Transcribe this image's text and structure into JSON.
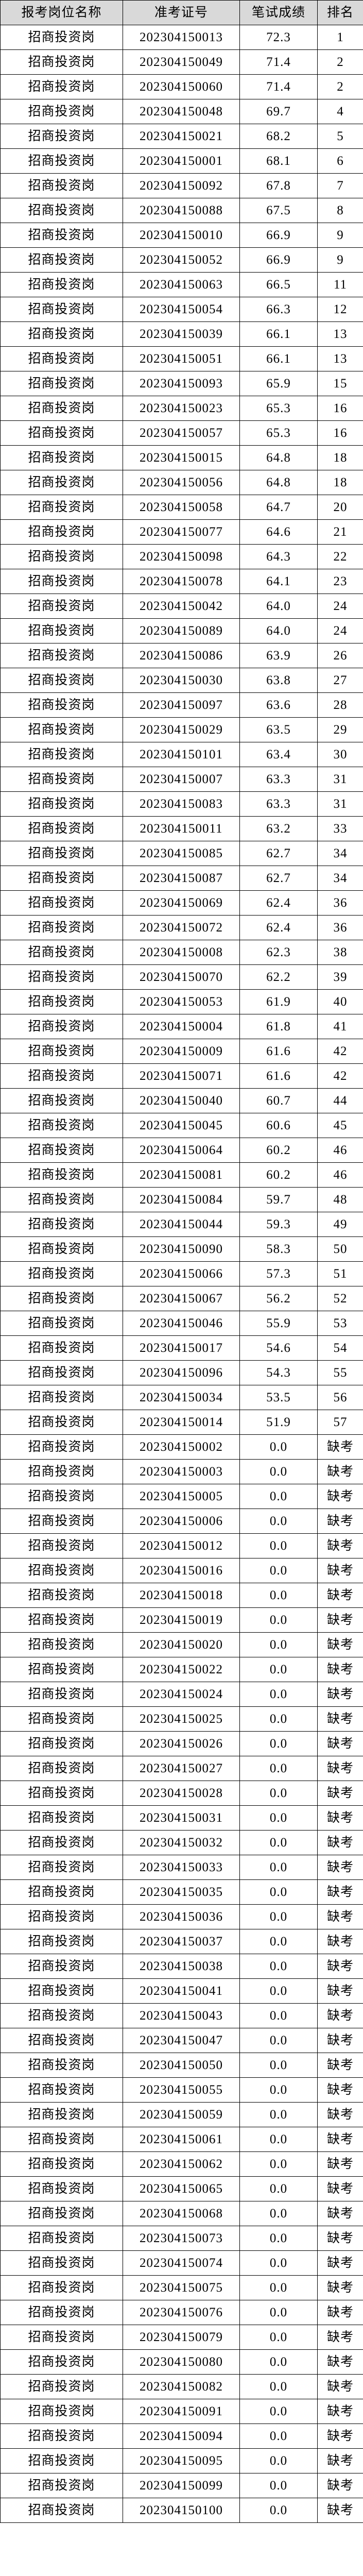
{
  "table": {
    "headers": [
      "报考岗位名称",
      "准考证号",
      "笔试成绩",
      "排名"
    ],
    "header_bg": "#d9d9d9",
    "rows": [
      [
        "招商投资岗",
        "202304150013",
        "72.3",
        "1"
      ],
      [
        "招商投资岗",
        "202304150049",
        "71.4",
        "2"
      ],
      [
        "招商投资岗",
        "202304150060",
        "71.4",
        "2"
      ],
      [
        "招商投资岗",
        "202304150048",
        "69.7",
        "4"
      ],
      [
        "招商投资岗",
        "202304150021",
        "68.2",
        "5"
      ],
      [
        "招商投资岗",
        "202304150001",
        "68.1",
        "6"
      ],
      [
        "招商投资岗",
        "202304150092",
        "67.8",
        "7"
      ],
      [
        "招商投资岗",
        "202304150088",
        "67.5",
        "8"
      ],
      [
        "招商投资岗",
        "202304150010",
        "66.9",
        "9"
      ],
      [
        "招商投资岗",
        "202304150052",
        "66.9",
        "9"
      ],
      [
        "招商投资岗",
        "202304150063",
        "66.5",
        "11"
      ],
      [
        "招商投资岗",
        "202304150054",
        "66.3",
        "12"
      ],
      [
        "招商投资岗",
        "202304150039",
        "66.1",
        "13"
      ],
      [
        "招商投资岗",
        "202304150051",
        "66.1",
        "13"
      ],
      [
        "招商投资岗",
        "202304150093",
        "65.9",
        "15"
      ],
      [
        "招商投资岗",
        "202304150023",
        "65.3",
        "16"
      ],
      [
        "招商投资岗",
        "202304150057",
        "65.3",
        "16"
      ],
      [
        "招商投资岗",
        "202304150015",
        "64.8",
        "18"
      ],
      [
        "招商投资岗",
        "202304150056",
        "64.8",
        "18"
      ],
      [
        "招商投资岗",
        "202304150058",
        "64.7",
        "20"
      ],
      [
        "招商投资岗",
        "202304150077",
        "64.6",
        "21"
      ],
      [
        "招商投资岗",
        "202304150098",
        "64.3",
        "22"
      ],
      [
        "招商投资岗",
        "202304150078",
        "64.1",
        "23"
      ],
      [
        "招商投资岗",
        "202304150042",
        "64.0",
        "24"
      ],
      [
        "招商投资岗",
        "202304150089",
        "64.0",
        "24"
      ],
      [
        "招商投资岗",
        "202304150086",
        "63.9",
        "26"
      ],
      [
        "招商投资岗",
        "202304150030",
        "63.8",
        "27"
      ],
      [
        "招商投资岗",
        "202304150097",
        "63.6",
        "28"
      ],
      [
        "招商投资岗",
        "202304150029",
        "63.5",
        "29"
      ],
      [
        "招商投资岗",
        "202304150101",
        "63.4",
        "30"
      ],
      [
        "招商投资岗",
        "202304150007",
        "63.3",
        "31"
      ],
      [
        "招商投资岗",
        "202304150083",
        "63.3",
        "31"
      ],
      [
        "招商投资岗",
        "202304150011",
        "63.2",
        "33"
      ],
      [
        "招商投资岗",
        "202304150085",
        "62.7",
        "34"
      ],
      [
        "招商投资岗",
        "202304150087",
        "62.7",
        "34"
      ],
      [
        "招商投资岗",
        "202304150069",
        "62.4",
        "36"
      ],
      [
        "招商投资岗",
        "202304150072",
        "62.4",
        "36"
      ],
      [
        "招商投资岗",
        "202304150008",
        "62.3",
        "38"
      ],
      [
        "招商投资岗",
        "202304150070",
        "62.2",
        "39"
      ],
      [
        "招商投资岗",
        "202304150053",
        "61.9",
        "40"
      ],
      [
        "招商投资岗",
        "202304150004",
        "61.8",
        "41"
      ],
      [
        "招商投资岗",
        "202304150009",
        "61.6",
        "42"
      ],
      [
        "招商投资岗",
        "202304150071",
        "61.6",
        "42"
      ],
      [
        "招商投资岗",
        "202304150040",
        "60.7",
        "44"
      ],
      [
        "招商投资岗",
        "202304150045",
        "60.6",
        "45"
      ],
      [
        "招商投资岗",
        "202304150064",
        "60.2",
        "46"
      ],
      [
        "招商投资岗",
        "202304150081",
        "60.2",
        "46"
      ],
      [
        "招商投资岗",
        "202304150084",
        "59.7",
        "48"
      ],
      [
        "招商投资岗",
        "202304150044",
        "59.3",
        "49"
      ],
      [
        "招商投资岗",
        "202304150090",
        "58.3",
        "50"
      ],
      [
        "招商投资岗",
        "202304150066",
        "57.3",
        "51"
      ],
      [
        "招商投资岗",
        "202304150067",
        "56.2",
        "52"
      ],
      [
        "招商投资岗",
        "202304150046",
        "55.9",
        "53"
      ],
      [
        "招商投资岗",
        "202304150017",
        "54.6",
        "54"
      ],
      [
        "招商投资岗",
        "202304150096",
        "54.3",
        "55"
      ],
      [
        "招商投资岗",
        "202304150034",
        "53.5",
        "56"
      ],
      [
        "招商投资岗",
        "202304150014",
        "51.9",
        "57"
      ],
      [
        "招商投资岗",
        "202304150002",
        "0.0",
        "缺考"
      ],
      [
        "招商投资岗",
        "202304150003",
        "0.0",
        "缺考"
      ],
      [
        "招商投资岗",
        "202304150005",
        "0.0",
        "缺考"
      ],
      [
        "招商投资岗",
        "202304150006",
        "0.0",
        "缺考"
      ],
      [
        "招商投资岗",
        "202304150012",
        "0.0",
        "缺考"
      ],
      [
        "招商投资岗",
        "202304150016",
        "0.0",
        "缺考"
      ],
      [
        "招商投资岗",
        "202304150018",
        "0.0",
        "缺考"
      ],
      [
        "招商投资岗",
        "202304150019",
        "0.0",
        "缺考"
      ],
      [
        "招商投资岗",
        "202304150020",
        "0.0",
        "缺考"
      ],
      [
        "招商投资岗",
        "202304150022",
        "0.0",
        "缺考"
      ],
      [
        "招商投资岗",
        "202304150024",
        "0.0",
        "缺考"
      ],
      [
        "招商投资岗",
        "202304150025",
        "0.0",
        "缺考"
      ],
      [
        "招商投资岗",
        "202304150026",
        "0.0",
        "缺考"
      ],
      [
        "招商投资岗",
        "202304150027",
        "0.0",
        "缺考"
      ],
      [
        "招商投资岗",
        "202304150028",
        "0.0",
        "缺考"
      ],
      [
        "招商投资岗",
        "202304150031",
        "0.0",
        "缺考"
      ],
      [
        "招商投资岗",
        "202304150032",
        "0.0",
        "缺考"
      ],
      [
        "招商投资岗",
        "202304150033",
        "0.0",
        "缺考"
      ],
      [
        "招商投资岗",
        "202304150035",
        "0.0",
        "缺考"
      ],
      [
        "招商投资岗",
        "202304150036",
        "0.0",
        "缺考"
      ],
      [
        "招商投资岗",
        "202304150037",
        "0.0",
        "缺考"
      ],
      [
        "招商投资岗",
        "202304150038",
        "0.0",
        "缺考"
      ],
      [
        "招商投资岗",
        "202304150041",
        "0.0",
        "缺考"
      ],
      [
        "招商投资岗",
        "202304150043",
        "0.0",
        "缺考"
      ],
      [
        "招商投资岗",
        "202304150047",
        "0.0",
        "缺考"
      ],
      [
        "招商投资岗",
        "202304150050",
        "0.0",
        "缺考"
      ],
      [
        "招商投资岗",
        "202304150055",
        "0.0",
        "缺考"
      ],
      [
        "招商投资岗",
        "202304150059",
        "0.0",
        "缺考"
      ],
      [
        "招商投资岗",
        "202304150061",
        "0.0",
        "缺考"
      ],
      [
        "招商投资岗",
        "202304150062",
        "0.0",
        "缺考"
      ],
      [
        "招商投资岗",
        "202304150065",
        "0.0",
        "缺考"
      ],
      [
        "招商投资岗",
        "202304150068",
        "0.0",
        "缺考"
      ],
      [
        "招商投资岗",
        "202304150073",
        "0.0",
        "缺考"
      ],
      [
        "招商投资岗",
        "202304150074",
        "0.0",
        "缺考"
      ],
      [
        "招商投资岗",
        "202304150075",
        "0.0",
        "缺考"
      ],
      [
        "招商投资岗",
        "202304150076",
        "0.0",
        "缺考"
      ],
      [
        "招商投资岗",
        "202304150079",
        "0.0",
        "缺考"
      ],
      [
        "招商投资岗",
        "202304150080",
        "0.0",
        "缺考"
      ],
      [
        "招商投资岗",
        "202304150082",
        "0.0",
        "缺考"
      ],
      [
        "招商投资岗",
        "202304150091",
        "0.0",
        "缺考"
      ],
      [
        "招商投资岗",
        "202304150094",
        "0.0",
        "缺考"
      ],
      [
        "招商投资岗",
        "202304150095",
        "0.0",
        "缺考"
      ],
      [
        "招商投资岗",
        "202304150099",
        "0.0",
        "缺考"
      ],
      [
        "招商投资岗",
        "202304150100",
        "0.0",
        "缺考"
      ]
    ]
  }
}
